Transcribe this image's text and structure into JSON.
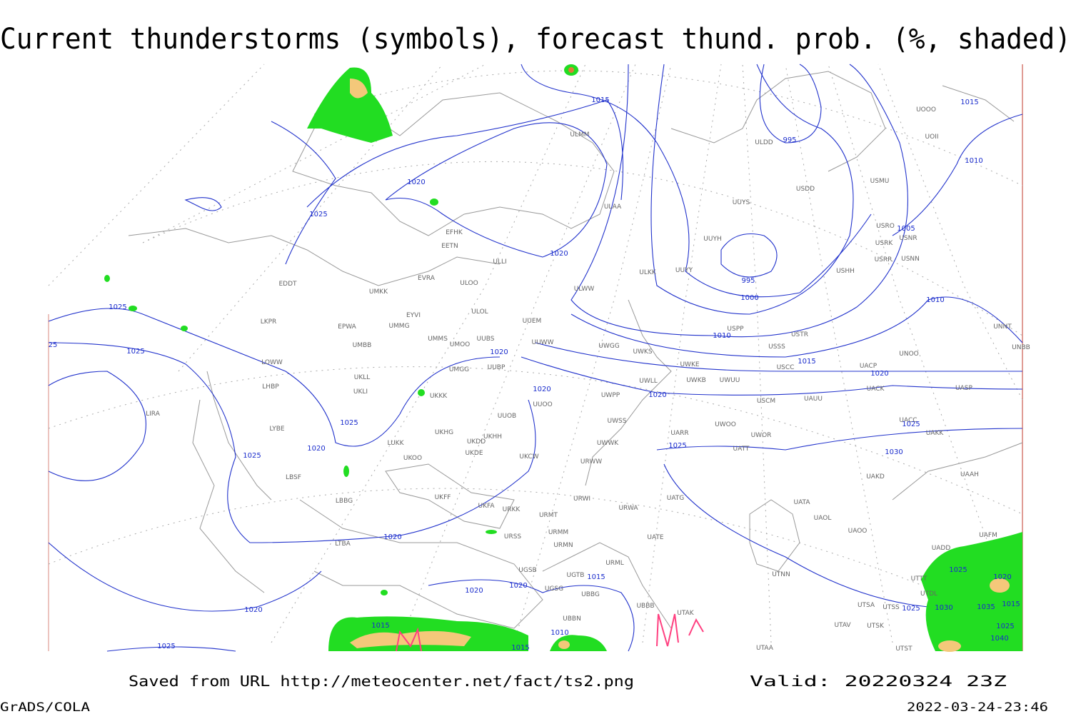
{
  "header": {
    "title": "Current thunderstorms (symbols), forecast thund. prob. (%, shaded)"
  },
  "map": {
    "stations": [
      "ULMM",
      "ULDD",
      "USDD",
      "USMU",
      "UOII",
      "UOOO",
      "ULAA",
      "UUYS",
      "EFHK",
      "EETN",
      "ULLI",
      "UUYH",
      "USRO",
      "USRK",
      "USNR",
      "USRR",
      "USNN",
      "USHH",
      "ULKK",
      "UUYY",
      "ULWW",
      "EVRA",
      "ULOO",
      "EDDT",
      "UMKK",
      "ULOL",
      "UUEM",
      "EYVI",
      "LKPR",
      "EPWA",
      "UMMG",
      "USPP",
      "UNNT",
      "USTR",
      "UMMS",
      "UMOO",
      "UUBS",
      "UUWW",
      "UWGG",
      "UWKS",
      "USSS",
      "UNBB",
      "UMBB",
      "UNOO",
      "LOWW",
      "UWKE",
      "USCC",
      "UACP",
      "UKLL",
      "UMGG",
      "UUBP",
      "UWLL",
      "UWKB",
      "UWUU",
      "LHBP",
      "UKLI",
      "UACK",
      "UASP",
      "UKKK",
      "UWPP",
      "USCM",
      "UAUU",
      "UUOO",
      "LIRA",
      "UUOB",
      "UACC",
      "UWSS",
      "LYBE",
      "UKHG",
      "UKHH",
      "UARR",
      "UWOO",
      "UWOR",
      "UAKK",
      "UKDD",
      "LUKK",
      "UKDE",
      "UWWK",
      "UATT",
      "UKOO",
      "UKCW",
      "URWW",
      "UAKD",
      "UKFF",
      "LBSF",
      "UAAH",
      "URWI",
      "UATG",
      "UKFA",
      "LBBG",
      "URKK",
      "URWA",
      "UATA",
      "URMT",
      "UAOL",
      "UAOO",
      "URSS",
      "URMM",
      "UATE",
      "UAFM",
      "LTBA",
      "URMN",
      "UADD",
      "URML",
      "UGSB",
      "UGTB",
      "UTNN",
      "UTTT",
      "UTDL",
      "UGSG",
      "UBBG",
      "UBBB",
      "UTSA",
      "UTSS",
      "UBBN",
      "UTAK",
      "UTSK",
      "UTAV",
      "UTAA",
      "UTST"
    ],
    "isobar_labels": [
      1015,
      995,
      1015,
      1010,
      1020,
      1025,
      1005,
      1020,
      995,
      1000,
      1010,
      1025,
      1010,
      25,
      1025,
      1020,
      1015,
      1020,
      1020,
      1020,
      1025,
      1025,
      1025,
      1020,
      1030,
      1025,
      1020,
      1025,
      1020,
      1015,
      1020,
      1020,
      1020,
      1025,
      1030,
      1035,
      1015,
      1015,
      1010,
      1025,
      1040,
      1025,
      1015
    ]
  },
  "footer": {
    "source": "Saved from URL http://meteocenter.net/fact/ts2.png",
    "valid": "Valid: 20220324 23Z",
    "software": "GrADS/COLA",
    "timestamp": "2022-03-24-23:46"
  }
}
